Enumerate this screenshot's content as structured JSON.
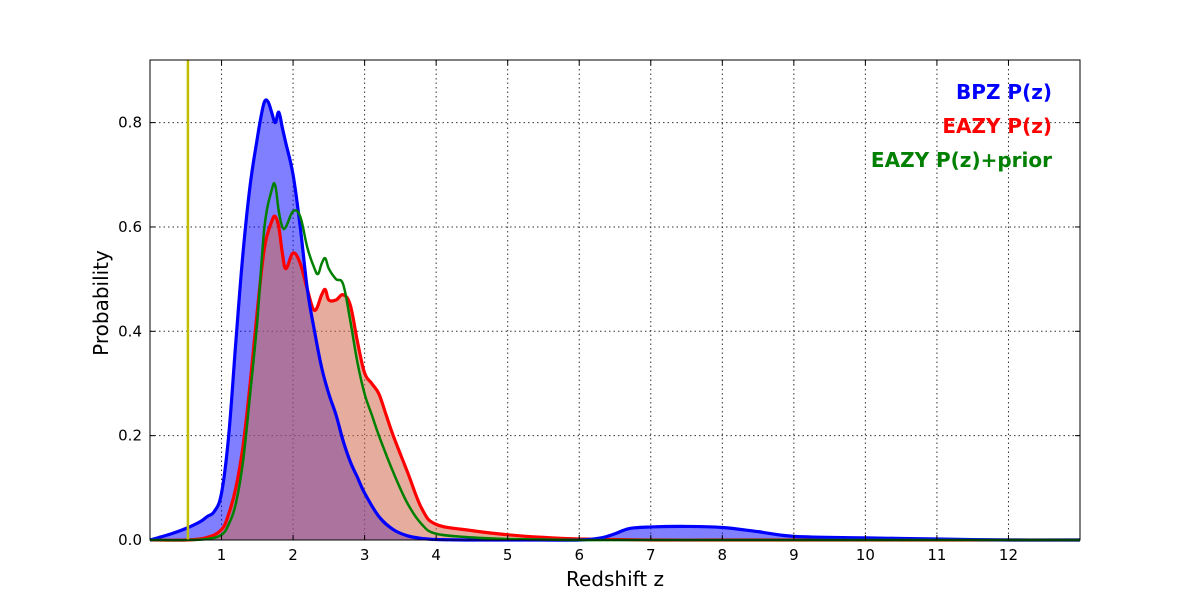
{
  "chart_data": {
    "type": "area",
    "title": "",
    "xlabel": "Redshift z",
    "ylabel": "Probability",
    "xlim": [
      0,
      13
    ],
    "ylim": [
      0,
      0.92
    ],
    "xticks": [
      1,
      2,
      3,
      4,
      5,
      6,
      7,
      8,
      9,
      10,
      11,
      12
    ],
    "yticks": [
      0.0,
      0.2,
      0.4,
      0.6,
      0.8
    ],
    "ytick_labels": [
      "0.0",
      "0.2",
      "0.4",
      "0.6",
      "0.8"
    ],
    "grid": true,
    "legend_position": "top-right",
    "vline": {
      "x": 0.53,
      "color": "#bfbf00"
    },
    "series": [
      {
        "name": "BPZ P(z)",
        "color": "#0000ff",
        "fill": "#0000ff",
        "fill_opacity": 0.5,
        "x": [
          0,
          0.3,
          0.5,
          0.7,
          0.8,
          0.9,
          1.0,
          1.1,
          1.2,
          1.3,
          1.4,
          1.5,
          1.55,
          1.6,
          1.65,
          1.7,
          1.75,
          1.8,
          1.85,
          1.9,
          2.0,
          2.1,
          2.2,
          2.3,
          2.4,
          2.5,
          2.6,
          2.7,
          2.8,
          2.9,
          3.0,
          3.2,
          3.4,
          3.6,
          3.8,
          4.0,
          4.5,
          5.0,
          5.5,
          6.0,
          6.3,
          6.5,
          6.7,
          7.0,
          7.5,
          8.0,
          8.5,
          9.0,
          10.0,
          11.0,
          12.0,
          13.0
        ],
        "y": [
          0.0,
          0.012,
          0.022,
          0.035,
          0.045,
          0.055,
          0.09,
          0.2,
          0.38,
          0.55,
          0.68,
          0.77,
          0.81,
          0.84,
          0.84,
          0.82,
          0.8,
          0.82,
          0.79,
          0.76,
          0.7,
          0.6,
          0.48,
          0.4,
          0.33,
          0.28,
          0.24,
          0.19,
          0.15,
          0.12,
          0.09,
          0.045,
          0.02,
          0.008,
          0.003,
          0.001,
          0.0,
          0.0,
          0.0,
          0.0,
          0.004,
          0.012,
          0.022,
          0.025,
          0.026,
          0.024,
          0.016,
          0.007,
          0.004,
          0.002,
          0.0,
          0.0
        ]
      },
      {
        "name": "EAZY P(z)",
        "color": "#ff0000",
        "fill": "#d2694f",
        "fill_opacity": 0.55,
        "x": [
          0,
          0.5,
          0.8,
          1.0,
          1.1,
          1.2,
          1.3,
          1.4,
          1.5,
          1.6,
          1.7,
          1.75,
          1.8,
          1.85,
          1.9,
          2.0,
          2.1,
          2.2,
          2.3,
          2.4,
          2.45,
          2.5,
          2.6,
          2.7,
          2.8,
          2.9,
          3.0,
          3.1,
          3.2,
          3.3,
          3.4,
          3.6,
          3.8,
          4.0,
          4.5,
          5.0,
          5.5,
          6.0,
          7.0,
          8.0,
          9.0,
          10.0,
          13.0
        ],
        "y": [
          0.0,
          0.0,
          0.005,
          0.02,
          0.05,
          0.1,
          0.18,
          0.3,
          0.44,
          0.56,
          0.61,
          0.62,
          0.6,
          0.55,
          0.52,
          0.55,
          0.53,
          0.48,
          0.44,
          0.47,
          0.48,
          0.46,
          0.46,
          0.47,
          0.45,
          0.38,
          0.32,
          0.3,
          0.28,
          0.24,
          0.2,
          0.13,
          0.06,
          0.03,
          0.018,
          0.01,
          0.005,
          0.002,
          0.0,
          0.0,
          0.0,
          0.0,
          0.0
        ]
      },
      {
        "name": "EAZY P(z)+prior",
        "color": "#008000",
        "fill": "none",
        "fill_opacity": 0,
        "x": [
          0,
          0.5,
          0.8,
          1.0,
          1.1,
          1.2,
          1.3,
          1.4,
          1.5,
          1.6,
          1.7,
          1.75,
          1.8,
          1.85,
          1.9,
          2.0,
          2.1,
          2.2,
          2.3,
          2.35,
          2.4,
          2.45,
          2.5,
          2.6,
          2.7,
          2.8,
          2.9,
          3.0,
          3.1,
          3.2,
          3.4,
          3.6,
          3.8,
          4.0,
          4.5,
          5.0,
          6.0,
          7.0,
          13.0
        ],
        "y": [
          0.0,
          0.0,
          0.002,
          0.01,
          0.03,
          0.07,
          0.15,
          0.28,
          0.42,
          0.6,
          0.67,
          0.68,
          0.63,
          0.6,
          0.6,
          0.63,
          0.62,
          0.56,
          0.52,
          0.51,
          0.53,
          0.54,
          0.52,
          0.5,
          0.49,
          0.42,
          0.34,
          0.28,
          0.24,
          0.2,
          0.13,
          0.07,
          0.03,
          0.012,
          0.005,
          0.002,
          0.0,
          0.0,
          0.0
        ]
      }
    ],
    "legend": [
      "BPZ P(z)",
      "EAZY P(z)",
      "EAZY P(z)+prior"
    ]
  }
}
